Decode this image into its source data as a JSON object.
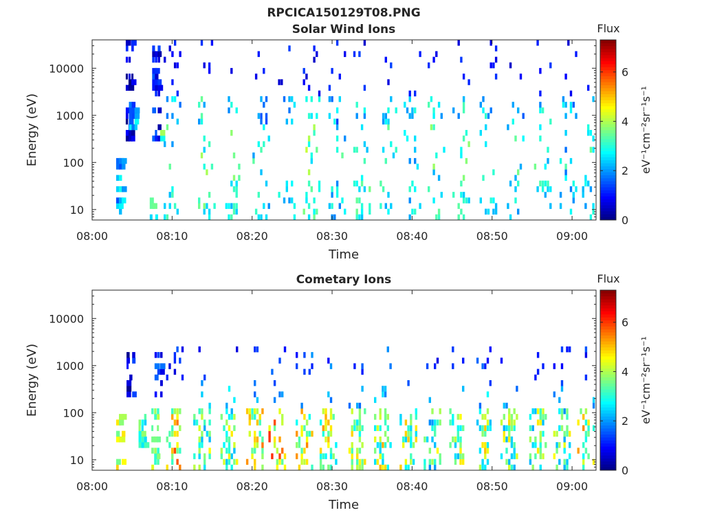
{
  "figure": {
    "title": "RPCICA150129T08.PNG"
  },
  "colorbar": {
    "label": "Flux",
    "unit_label": "eV⁻¹cm⁻²sr⁻¹s⁻¹",
    "range": [
      0,
      7.3
    ],
    "ticks": [
      "0",
      "2",
      "4",
      "6"
    ],
    "colormap": "jet"
  },
  "chart_data": [
    {
      "type": "heatmap",
      "title": "Solar Wind Ions",
      "xlabel": "Time",
      "ylabel": "Energy (eV)",
      "x_ticks": [
        "08:00",
        "08:10",
        "08:20",
        "08:30",
        "08:40",
        "08:50",
        "09:00"
      ],
      "y_ticks": [
        "10",
        "100",
        "1000",
        "10000"
      ],
      "y_scale": "log",
      "ylim": [
        6,
        40000
      ],
      "xlim_minutes": [
        0,
        63
      ],
      "grid": false,
      "blocks": [
        {
          "t": 3.0,
          "e_lo": 6,
          "e_hi": 110,
          "v": 2.2
        },
        {
          "t": 4.2,
          "e_lo": 300,
          "e_hi": 35000,
          "v": 0.6
        },
        {
          "t": 4.6,
          "e_lo": 500,
          "e_hi": 2000,
          "v": 2.0
        },
        {
          "t": 7.2,
          "e_lo": 6,
          "e_hi": 60,
          "v": 2.8
        },
        {
          "t": 7.5,
          "e_lo": 200,
          "e_hi": 35000,
          "v": 0.8
        },
        {
          "t": 7.8,
          "e_lo": 250,
          "e_hi": 900,
          "v": 3.6
        }
      ],
      "bursts": [
        {
          "t": 9.9,
          "v": 4.0
        },
        {
          "t": 14.2,
          "v": 4.3
        },
        {
          "t": 17.6,
          "v": 4.1
        },
        {
          "t": 21.0,
          "v": 3.8
        },
        {
          "t": 24.2,
          "v": 3.9
        },
        {
          "t": 27.3,
          "v": 4.4
        },
        {
          "t": 30.5,
          "v": 3.7
        },
        {
          "t": 33.6,
          "v": 4.2
        },
        {
          "t": 36.9,
          "v": 4.0
        },
        {
          "t": 39.9,
          "v": 3.8
        },
        {
          "t": 42.9,
          "v": 4.1
        },
        {
          "t": 46.0,
          "v": 4.2
        },
        {
          "t": 49.4,
          "v": 3.9
        },
        {
          "t": 52.8,
          "v": 3.8
        },
        {
          "t": 56.2,
          "v": 4.0
        },
        {
          "t": 59.4,
          "v": 3.7
        },
        {
          "t": 62.2,
          "v": 3.9
        }
      ]
    },
    {
      "type": "heatmap",
      "title": "Cometary Ions",
      "xlabel": "Time",
      "ylabel": "Energy (eV)",
      "x_ticks": [
        "08:00",
        "08:10",
        "08:20",
        "08:30",
        "08:40",
        "08:50",
        "09:00"
      ],
      "y_ticks": [
        "10",
        "100",
        "1000",
        "10000"
      ],
      "y_scale": "log",
      "ylim": [
        6,
        40000
      ],
      "xlim_minutes": [
        0,
        63
      ],
      "grid": false,
      "blocks": [
        {
          "t": 3.0,
          "e_lo": 6,
          "e_hi": 110,
          "v": 4.2
        },
        {
          "t": 4.3,
          "e_lo": 150,
          "e_hi": 2000,
          "v": 0.7
        },
        {
          "t": 5.8,
          "e_lo": 20,
          "e_hi": 100,
          "v": 3.0
        },
        {
          "t": 7.4,
          "e_lo": 6,
          "e_hi": 110,
          "v": 3.8
        },
        {
          "t": 7.8,
          "e_lo": 200,
          "e_hi": 2000,
          "v": 1.2
        }
      ],
      "bursts": [
        {
          "t": 10.2,
          "v": 5.9
        },
        {
          "t": 13.6,
          "v": 4.9
        },
        {
          "t": 17.0,
          "v": 4.8
        },
        {
          "t": 20.2,
          "v": 5.6
        },
        {
          "t": 23.0,
          "v": 6.1
        },
        {
          "t": 26.4,
          "v": 5.5
        },
        {
          "t": 29.4,
          "v": 5.3
        },
        {
          "t": 33.0,
          "v": 4.9
        },
        {
          "t": 36.2,
          "v": 5.2
        },
        {
          "t": 39.4,
          "v": 5.0
        },
        {
          "t": 42.4,
          "v": 4.7
        },
        {
          "t": 45.6,
          "v": 4.8
        },
        {
          "t": 49.0,
          "v": 5.0
        },
        {
          "t": 52.0,
          "v": 4.9
        },
        {
          "t": 55.6,
          "v": 4.8
        },
        {
          "t": 58.6,
          "v": 4.7
        },
        {
          "t": 61.6,
          "v": 5.5
        }
      ]
    }
  ]
}
